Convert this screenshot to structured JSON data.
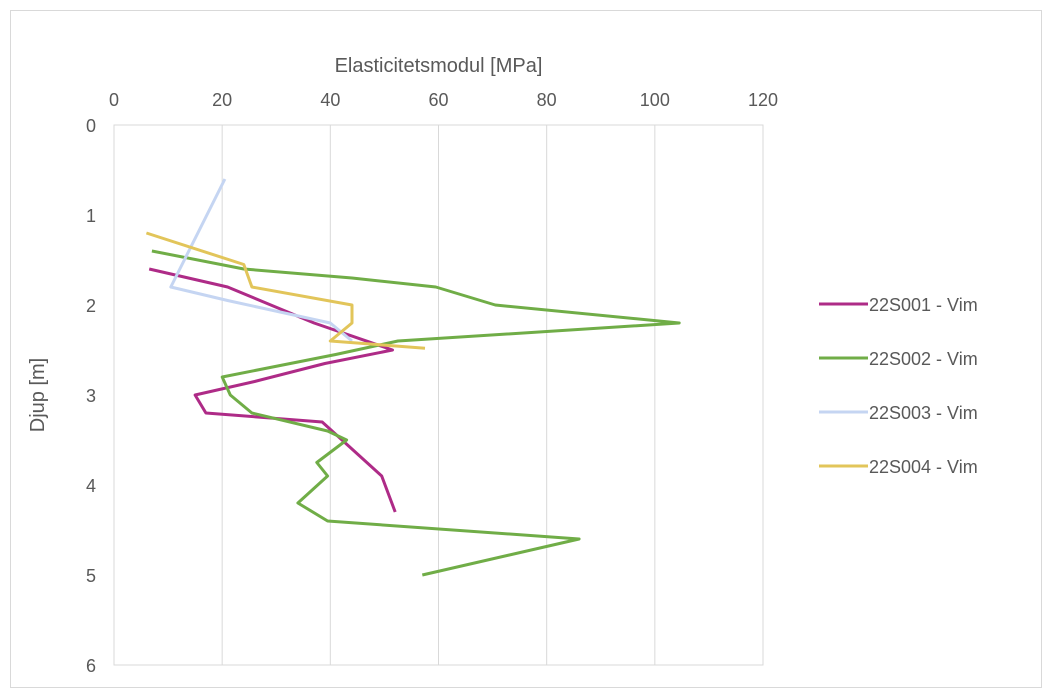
{
  "chart_data": {
    "type": "line",
    "xlabel": "Elasticitetsmodul [MPa]",
    "ylabel": "Djup [m]",
    "xlim": [
      0,
      120
    ],
    "ylim": [
      0,
      6
    ],
    "y_inverted": true,
    "x_axis_position": "top",
    "x_ticks": [
      0,
      20,
      40,
      60,
      80,
      100,
      120
    ],
    "y_ticks": [
      0,
      1,
      2,
      3,
      4,
      5,
      6
    ],
    "x_tick_labels": [
      "0",
      "20",
      "40",
      "60",
      "80",
      "100",
      "120"
    ],
    "y_tick_labels": [
      "0",
      "1",
      "2",
      "3",
      "4",
      "5",
      "6"
    ],
    "grid": "vertical",
    "legend_position": "right",
    "series": [
      {
        "name": "22S001 - Vim",
        "color": "#ae2b87",
        "points": [
          [
            6.5,
            1.6
          ],
          [
            21,
            1.8
          ],
          [
            29,
            2.0
          ],
          [
            37,
            2.2
          ],
          [
            51.5,
            2.5
          ],
          [
            39,
            2.65
          ],
          [
            26,
            2.85
          ],
          [
            15,
            3.0
          ],
          [
            17,
            3.2
          ],
          [
            38.5,
            3.3
          ],
          [
            49.5,
            3.9
          ],
          [
            52,
            4.3
          ]
        ]
      },
      {
        "name": "22S002 - Vim",
        "color": "#70ad47",
        "points": [
          [
            7,
            1.4
          ],
          [
            24,
            1.6
          ],
          [
            44,
            1.7
          ],
          [
            59.5,
            1.8
          ],
          [
            70.5,
            2.0
          ],
          [
            104.5,
            2.2
          ],
          [
            52.5,
            2.4
          ],
          [
            41,
            2.55
          ],
          [
            20,
            2.8
          ],
          [
            21.5,
            3.0
          ],
          [
            25.5,
            3.2
          ],
          [
            39.5,
            3.4
          ],
          [
            43,
            3.5
          ],
          [
            37.5,
            3.75
          ],
          [
            39.5,
            3.9
          ],
          [
            34,
            4.2
          ],
          [
            39.5,
            4.4
          ],
          [
            86,
            4.6
          ],
          [
            57,
            5.0
          ]
        ]
      },
      {
        "name": "22S003 - Vim",
        "color": "#c5d5f2",
        "points": [
          [
            20.5,
            0.6
          ],
          [
            10.5,
            1.8
          ],
          [
            21,
            1.95
          ],
          [
            40,
            2.2
          ],
          [
            44,
            2.4
          ]
        ]
      },
      {
        "name": "22S004 - Vim",
        "color": "#e2c55a",
        "points": [
          [
            6,
            1.2
          ],
          [
            24,
            1.55
          ],
          [
            25.5,
            1.8
          ],
          [
            44,
            2.0
          ],
          [
            44,
            2.2
          ],
          [
            40,
            2.4
          ],
          [
            57.5,
            2.48
          ]
        ]
      }
    ]
  }
}
